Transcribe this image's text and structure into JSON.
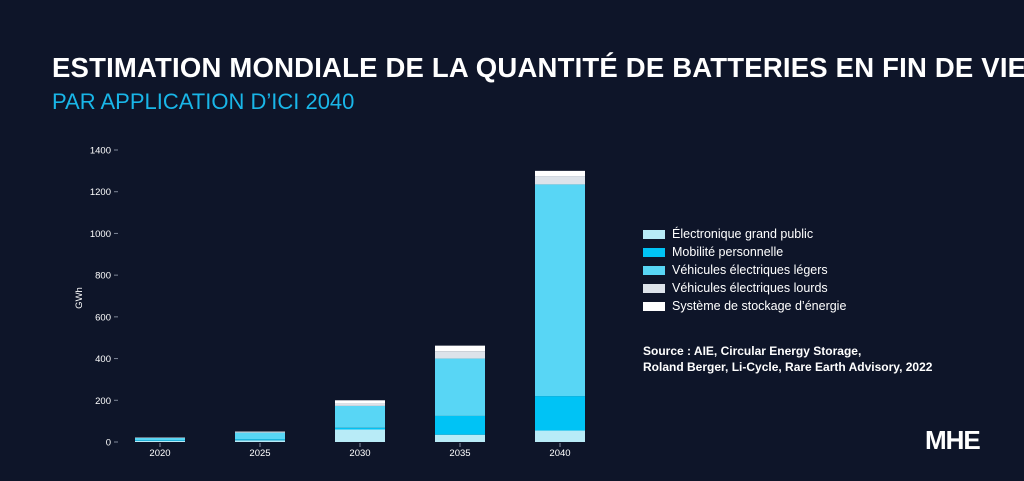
{
  "title": "ESTIMATION MONDIALE DE LA QUANTITÉ DE BATTERIES EN FIN DE VIE",
  "subtitle": "PAR APPLICATION D’ICI 2040",
  "source_line1": "Source : AIE, Circular Energy Storage,",
  "source_line2": "Roland Berger, Li-Cycle, Rare Earth Advisory, 2022",
  "logo": "MHE",
  "colors": {
    "background": "#0e1529",
    "accent": "#19b6e8"
  },
  "chart_data": {
    "type": "bar",
    "stacked": true,
    "title": "",
    "xlabel": "",
    "ylabel": "GWh",
    "ylim": [
      0,
      1400
    ],
    "yticks": [
      0,
      200,
      400,
      600,
      800,
      1000,
      1200,
      1400
    ],
    "categories": [
      "2020",
      "2025",
      "2030",
      "2035",
      "2040"
    ],
    "legend_position": "right",
    "series": [
      {
        "name": "Électronique grand public",
        "color": "#b8ebf7",
        "values": [
          5,
          8,
          60,
          35,
          55
        ]
      },
      {
        "name": "Mobilité personnelle",
        "color": "#00c3f5",
        "values": [
          3,
          5,
          8,
          90,
          165
        ]
      },
      {
        "name": "Véhicules électriques légers",
        "color": "#58d6f5",
        "values": [
          12,
          32,
          105,
          275,
          1015
        ]
      },
      {
        "name": "Véhicules électriques lourds",
        "color": "#dde3ea",
        "values": [
          1,
          3,
          12,
          35,
          40
        ]
      },
      {
        "name": "Système de stockage d’énergie",
        "color": "#ffffff",
        "values": [
          1,
          2,
          15,
          27,
          25
        ]
      }
    ]
  }
}
